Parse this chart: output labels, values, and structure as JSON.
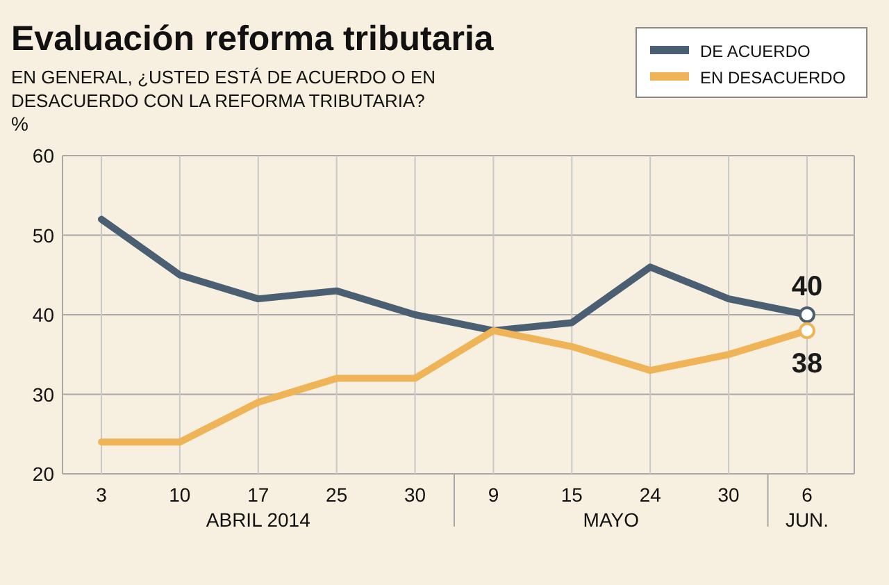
{
  "chart_data": {
    "type": "line",
    "title": "Evaluación reforma tributaria",
    "subtitle": "EN GENERAL, ¿USTED ESTÁ DE ACUERDO O EN DESACUERDO CON LA REFORMA TRIBUTARIA?",
    "ylabel": "%",
    "categories": [
      "3",
      "10",
      "17",
      "25",
      "30",
      "9",
      "15",
      "24",
      "30",
      "6"
    ],
    "series": [
      {
        "name": "DE ACUERDO",
        "color": "#4a6072",
        "values": [
          52,
          45,
          42,
          43,
          40,
          38,
          39,
          46,
          42,
          40
        ],
        "value_labels": [
          null,
          null,
          null,
          null,
          null,
          null,
          null,
          null,
          null,
          "40"
        ]
      },
      {
        "name": "EN DESACUERDO",
        "color": "#f0b458",
        "values": [
          24,
          24,
          29,
          32,
          32,
          38,
          36,
          33,
          35,
          38
        ],
        "value_labels": [
          null,
          null,
          null,
          null,
          null,
          null,
          null,
          null,
          null,
          "38"
        ]
      }
    ],
    "ylim": [
      20,
      60
    ],
    "yticks": [
      20,
      30,
      40,
      50,
      60
    ],
    "grid": true,
    "legend": "top right",
    "annotations": [
      "ABRIL 2014",
      "MAYO",
      "JUN."
    ]
  }
}
